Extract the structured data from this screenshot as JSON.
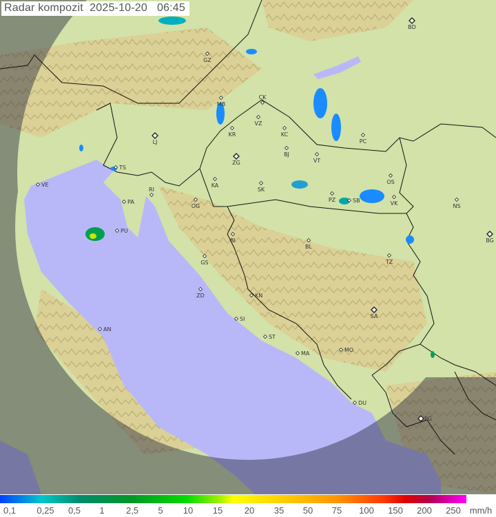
{
  "title": "Radar kompozit",
  "date": "2025-10-20",
  "time": "06:45",
  "colors": {
    "land": "#d2e2a8",
    "mountain": "#e2d49a",
    "sea": "#b8b8f8",
    "outside_dark": "#3c3c50",
    "border": "#111111"
  },
  "cities": [
    {
      "code": "BD",
      "capital": true
    },
    {
      "code": "GZ"
    },
    {
      "code": "MB"
    },
    {
      "code": "CK"
    },
    {
      "code": "VZ"
    },
    {
      "code": "KR"
    },
    {
      "code": "KC"
    },
    {
      "code": "LJ",
      "capital": true
    },
    {
      "code": "BJ"
    },
    {
      "code": "VT"
    },
    {
      "code": "PC"
    },
    {
      "code": "ZG",
      "capital": true
    },
    {
      "code": "TS"
    },
    {
      "code": "VE"
    },
    {
      "code": "KA"
    },
    {
      "code": "SK"
    },
    {
      "code": "RI"
    },
    {
      "code": "OS"
    },
    {
      "code": "PA"
    },
    {
      "code": "OG"
    },
    {
      "code": "PZ"
    },
    {
      "code": "SB"
    },
    {
      "code": "VK"
    },
    {
      "code": "NS"
    },
    {
      "code": "PU"
    },
    {
      "code": "BI"
    },
    {
      "code": "BL"
    },
    {
      "code": "BG",
      "capital": true
    },
    {
      "code": "GS"
    },
    {
      "code": "TZ"
    },
    {
      "code": "ZD"
    },
    {
      "code": "KN"
    },
    {
      "code": "SA",
      "capital": true
    },
    {
      "code": "AN"
    },
    {
      "code": "SI"
    },
    {
      "code": "ST"
    },
    {
      "code": "MA"
    },
    {
      "code": "MO"
    },
    {
      "code": "DU"
    },
    {
      "code": "PG",
      "capital": true
    }
  ],
  "legend": {
    "unit": "mm/h",
    "labels": [
      "0,1",
      "0,25",
      "0,5",
      "1",
      "2,5",
      "5",
      "10",
      "15",
      "20",
      "35",
      "50",
      "75",
      "100",
      "150",
      "200",
      "250"
    ]
  }
}
